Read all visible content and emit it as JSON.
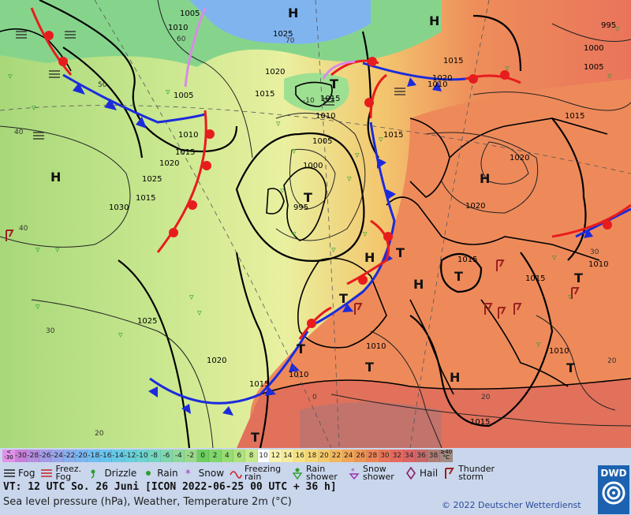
{
  "map": {
    "pressure_labels": [
      "1005",
      "1010",
      "1025",
      "1020",
      "1005",
      "1015",
      "1015",
      "1010",
      "1015",
      "1020",
      "1025",
      "1030",
      "1010",
      "1005",
      "1000",
      "995",
      "1015",
      "1010",
      "1015",
      "1015",
      "1020",
      "1020",
      "1015",
      "1015",
      "1010",
      "1015",
      "1010",
      "1025",
      "1020",
      "1015",
      "1010",
      "1010",
      "1015",
      "1020",
      "995",
      "1000",
      "1005"
    ],
    "temperature_labels": [
      "60",
      "50",
      "40",
      "40",
      "30",
      "20",
      "0",
      "20",
      "20",
      "-10",
      "30",
      "70"
    ],
    "pressure_centers": [
      "H",
      "H",
      "H",
      "H",
      "H",
      "H",
      "H",
      "T",
      "T",
      "T",
      "T",
      "T",
      "T",
      "T",
      "T",
      "T",
      "T"
    ]
  },
  "legend": {
    "scale_values": [
      "-30",
      "-28",
      "-26",
      "-24",
      "-22",
      "-20",
      "-18",
      "-16",
      "-14",
      "-12",
      "-10",
      "-8",
      "-6",
      "-4",
      "-2",
      "0",
      "2",
      "4",
      "6",
      "8",
      "10",
      "12",
      "14",
      "16",
      "18",
      "20",
      "22",
      "24",
      "26",
      "28",
      "30",
      "32",
      "34",
      "36",
      "38"
    ],
    "scale_colors": [
      "#c97fd9",
      "#b58ee0",
      "#a59ce6",
      "#97a6ea",
      "#8aafee",
      "#7bb6f0",
      "#6fbef1",
      "#68c4ee",
      "#66cae6",
      "#68cfdb",
      "#6cd3cf",
      "#74d6bf",
      "#80d8ac",
      "#8dd99a",
      "#9bd98a",
      "#6dce62",
      "#80d66a",
      "#97dc72",
      "#aee27d",
      "#c6e98b",
      "#ffffff",
      "#f7f3b0",
      "#f7ec9a",
      "#f6e284",
      "#f6d676",
      "#f5c868",
      "#f3b75f",
      "#f0a658",
      "#ee9556",
      "#ec8458",
      "#e9745b",
      "#e56960",
      "#dc6466",
      "#c86a6a",
      "#b07c74"
    ],
    "scale_left_cap": [
      "<",
      "-30"
    ],
    "scale_right_cap": [
      "≥40",
      "°C"
    ],
    "symbols": [
      "Fog",
      "Freez. Fog",
      "Drizzle",
      "Rain",
      "Snow",
      "Freezing rain",
      "Rain shower",
      "Snow shower",
      "Hail",
      "Thunder storm"
    ],
    "title_line": "VT: 12 UTC So.  26 Juni [ICON 2022-06-25  00 UTC + 36 h]",
    "subtitle": "Sea level pressure (hPa), Weather, Temperature 2m (°C)",
    "copyright": "© 2022 Deutscher Wetterdienst",
    "logo_text": "DWD",
    "colors": {
      "cold_front": "#1b2bdc",
      "warm_front": "#e81c1c",
      "occlusion": "#d98ae4",
      "isobar_major": "#000000",
      "isobar_minor": "#333333",
      "background": "#c9d6ec"
    }
  }
}
